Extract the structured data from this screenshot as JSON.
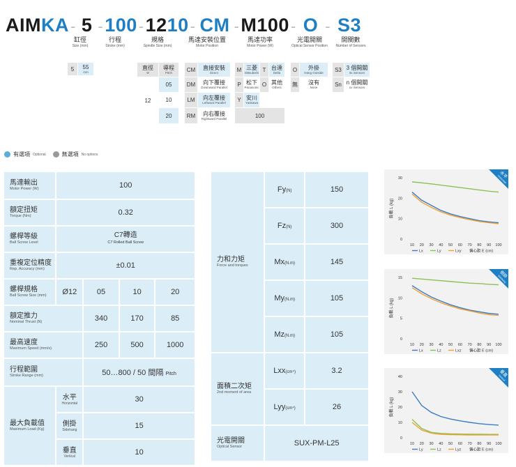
{
  "model_code": {
    "prefix": "AIM",
    "type": "KA",
    "seg_size": "5",
    "seg_stroke": "100",
    "seg_spindle_a": "12",
    "seg_spindle_b": "10",
    "seg_motor_pos": "CM",
    "seg_motor_power": "M100",
    "seg_sensor_pos": "O",
    "seg_sensors": "S3",
    "dash": "-"
  },
  "columns": {
    "size": {
      "zh": "缸徑",
      "en": "Size (mm)"
    },
    "stroke": {
      "zh": "行程",
      "en": "Stroke (mm)"
    },
    "spindle": {
      "zh": "規格",
      "en": "Spindle Size (mm)"
    },
    "motor_pos": {
      "zh": "馬達安裝位置",
      "en": "Motor Position"
    },
    "motor_power": {
      "zh": "馬達功率",
      "en": "Motor Power (W)"
    },
    "sensor_pos": {
      "zh": "光電開關",
      "en": "Optical Sensor Position"
    },
    "sensors": {
      "zh": "開關數",
      "en": "Number of Sensors"
    }
  },
  "size_options": {
    "code": "5",
    "value": "55",
    "unit": "mm"
  },
  "spindle_header": {
    "dia_zh": "直徑",
    "dia_sym": "Φ",
    "pitch_zh": "導程",
    "pitch_en": "Pitch"
  },
  "spindle_dia": "12",
  "spindle_pitches": [
    "05",
    "10",
    "20"
  ],
  "motor_positions": [
    {
      "code": "CM",
      "zh": "直接安裝",
      "en": "Direct"
    },
    {
      "code": "DM",
      "zh": "向下覆接",
      "en": "Downward Parallel"
    },
    {
      "code": "LM",
      "zh": "向左覆接",
      "en": "Leftward Parallel"
    },
    {
      "code": "RM",
      "zh": "向右覆接",
      "en": "Rightward Parallel"
    }
  ],
  "motor_brands": [
    {
      "code": "M",
      "zh": "三菱",
      "en": "Mitsubishi"
    },
    {
      "code": "T",
      "zh": "台達",
      "en": "Delta"
    },
    {
      "code": "P",
      "zh": "松下",
      "en": "Panasonic"
    },
    {
      "code": "O",
      "zh": "其他",
      "en": "Others"
    },
    {
      "code": "Y",
      "zh": "安川",
      "en": "Yaskawa"
    }
  ],
  "motor_power_value": "100",
  "sensor_positions": [
    {
      "code": "O",
      "zh": "外掛",
      "en": "Hang Outside"
    },
    {
      "code": "無",
      "zh": "沒有",
      "en": "None"
    }
  ],
  "sensor_counts": [
    {
      "code": "S3",
      "zh": "3 個開關",
      "en": "3x Sensors"
    },
    {
      "code": "Sn",
      "zh": "n 個開關",
      "en": "nx Sensors"
    }
  ],
  "legend": {
    "optional_zh": "有選項",
    "optional_en": "Optional",
    "none_zh": "無選項",
    "none_en": "No options"
  },
  "spec_left": {
    "motor_power": {
      "zh": "馬達輸出",
      "en": "Motor Power (W)",
      "value": "100"
    },
    "torque": {
      "zh": "額定扭矩",
      "en": "Torque (Nm)",
      "value": "0.32"
    },
    "grade": {
      "zh": "螺桿等級",
      "en": "Ball Screw Level",
      "value_zh": "C7轉造",
      "value_en": "C7 Rolled Ball Screw"
    },
    "accuracy": {
      "zh": "重複定位精度",
      "en": "Rep. Accuracy (mm)",
      "value": "±0.01"
    },
    "screw_size": {
      "zh": "螺桿規格",
      "en": "Ball Screw Size (mm)",
      "dia": "Ø12",
      "pitches": [
        "05",
        "10",
        "20"
      ]
    },
    "thrust": {
      "zh": "額定推力",
      "en": "Nominal Thrust (N)",
      "values": [
        "340",
        "170",
        "85"
      ]
    },
    "speed": {
      "zh": "最高速度",
      "en": "Maximum Speed (mm/s)",
      "values": [
        "250",
        "500",
        "1000"
      ]
    },
    "stroke": {
      "zh": "行程範圍",
      "en": "Stroke Range (mm)",
      "value": "50…800 / 50 間隔",
      "value_en": "Pitch"
    },
    "max_load": {
      "zh": "最大負載值",
      "en": "Maximum Load (Kg)",
      "rows": [
        {
          "zh": "水平",
          "en": "Horizontal",
          "value": "30"
        },
        {
          "zh": "側掛",
          "en": "Sidehang",
          "value": "15"
        },
        {
          "zh": "垂直",
          "en": "Vertical",
          "value": "10"
        }
      ]
    }
  },
  "spec_right": {
    "forces": {
      "zh": "力和力矩",
      "en": "Force and torques",
      "rows": [
        {
          "sym": "Fy",
          "unit": "(N)",
          "value": "150"
        },
        {
          "sym": "Fz",
          "unit": "(N)",
          "value": "300"
        },
        {
          "sym": "Mx",
          "unit": "(N.m)",
          "value": "145"
        },
        {
          "sym": "My",
          "unit": "(N.m)",
          "value": "105"
        },
        {
          "sym": "Mz",
          "unit": "(N.m)",
          "value": "105"
        }
      ]
    },
    "inertia": {
      "zh": "面積二次矩",
      "en": "2nd moment of area",
      "rows": [
        {
          "sym": "Lxx",
          "unit": "(cm⁴)",
          "value": "3.2"
        },
        {
          "sym": "Lyy",
          "unit": "(cm⁴)",
          "value": "26"
        }
      ]
    },
    "sensor": {
      "zh": "光電開關",
      "en": "Optical Sensor",
      "value": "SUX-PM-L25"
    }
  },
  "chart_data": [
    {
      "type": "line",
      "badge_zh": "水平",
      "badge_en": "Horizontal",
      "ylabel": "負載 L (kg)",
      "xlabel": "偏心距 E (cm)",
      "x": [
        10,
        20,
        30,
        40,
        50,
        60,
        70,
        80,
        90,
        100
      ],
      "ylim": [
        0,
        30
      ],
      "yticks": [
        0,
        10,
        20,
        30
      ],
      "series": [
        {
          "name": "Lx",
          "color": "#3a7cc4",
          "values": [
            23,
            19,
            16.5,
            14,
            12.3,
            11,
            10,
            9,
            8.4,
            8
          ]
        },
        {
          "name": "Ly",
          "color": "#8cc152",
          "values": [
            28,
            27.5,
            27,
            26.4,
            25.8,
            25.2,
            24.6,
            24,
            23.4,
            23
          ]
        },
        {
          "name": "Lxy",
          "color": "#f0a030",
          "values": [
            22,
            18,
            15.5,
            13.3,
            11.7,
            10.5,
            9.5,
            8.6,
            8,
            7.5
          ]
        }
      ]
    },
    {
      "type": "line",
      "badge_zh": "側掛",
      "badge_en": "Sidehang",
      "ylabel": "負載 L (kg)",
      "xlabel": "偏心距 E (cm)",
      "x": [
        10,
        20,
        30,
        40,
        50,
        60,
        70,
        80,
        90,
        100
      ],
      "ylim": [
        0,
        15
      ],
      "yticks": [
        0,
        5,
        10,
        15
      ],
      "series": [
        {
          "name": "Lx",
          "color": "#3a7cc4",
          "values": [
            13,
            11.5,
            10.2,
            9.2,
            8.3,
            7.6,
            7,
            6.6,
            6.2,
            6
          ]
        },
        {
          "name": "Lz",
          "color": "#8cc152",
          "values": [
            14.8,
            14.6,
            14.4,
            14.2,
            14,
            13.8,
            13.6,
            13.5,
            13.3,
            13.2
          ]
        },
        {
          "name": "Lxz",
          "color": "#f0a030",
          "values": [
            12.5,
            11,
            9.8,
            8.8,
            8,
            7.3,
            6.8,
            6.3,
            5.9,
            5.7
          ]
        }
      ]
    },
    {
      "type": "line",
      "badge_zh": "垂直",
      "badge_en": "Vertical",
      "ylabel": "負載 L (kg)",
      "xlabel": "偏心距 E (cm)",
      "x": [
        10,
        20,
        30,
        40,
        50,
        60,
        70,
        80,
        90,
        100
      ],
      "ylim": [
        0,
        40
      ],
      "yticks": [
        0,
        10,
        20,
        30,
        40
      ],
      "series": [
        {
          "name": "Ly",
          "color": "#3a7cc4",
          "values": [
            30,
            21,
            16.5,
            13.8,
            12.2,
            11,
            10,
            9.2,
            8.6,
            8.2
          ]
        },
        {
          "name": "Lz",
          "color": "#8cc152",
          "values": [
            12,
            6,
            3.5,
            2.8,
            2.5,
            2.4,
            2.3,
            2.3,
            2.2,
            2.2
          ]
        },
        {
          "name": "Lyz",
          "color": "#f0a030",
          "values": [
            10,
            5,
            3,
            2.2,
            2,
            1.9,
            1.8,
            1.8,
            1.8,
            1.8
          ]
        }
      ]
    }
  ]
}
